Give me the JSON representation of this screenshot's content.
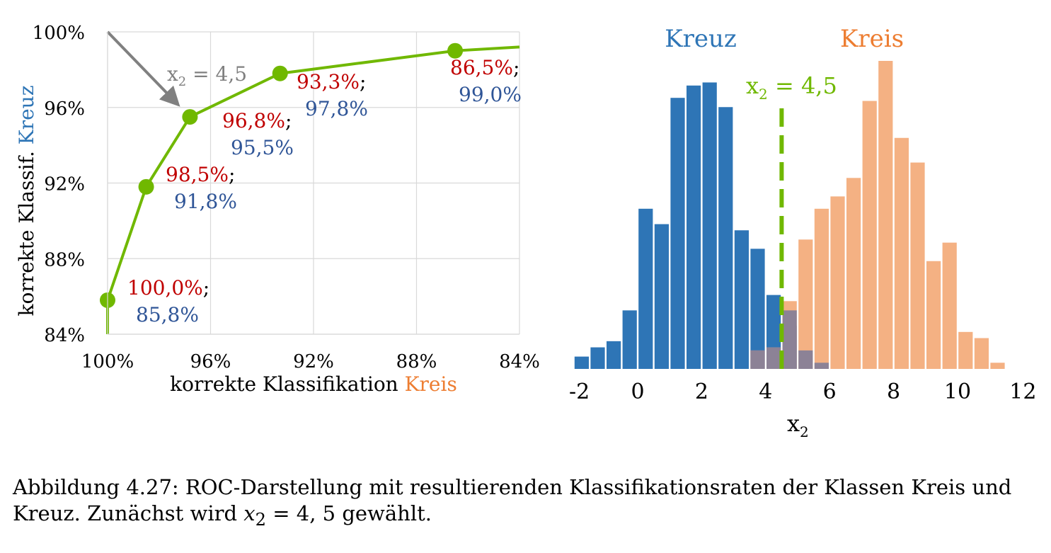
{
  "colors": {
    "kreuz": "#2e75b6",
    "kreis": "#f4b183",
    "kreis_text": "#ed7d31",
    "overlap": "#8c8296",
    "roc_line": "#70b800",
    "threshold": "#70b800",
    "arrow": "#808080",
    "label_kreis_rate": "#c00000",
    "label_kreuz_rate": "#2f5597",
    "grid": "#d9d9d9"
  },
  "chart_data": [
    {
      "type": "line",
      "xlabel_prefix": "korrekte Klassifikation ",
      "xlabel_class": "Kreis",
      "ylabel_prefix": "korrekte Klassif. ",
      "ylabel_class": "Kreuz",
      "xlim": [
        100,
        84
      ],
      "ylim": [
        84,
        100
      ],
      "x_reversed": true,
      "grid": true,
      "x_ticks": [
        100,
        96,
        92,
        88,
        84
      ],
      "x_tick_labels": [
        "100%",
        "96%",
        "92%",
        "88%",
        "84%"
      ],
      "y_ticks": [
        84,
        88,
        92,
        96,
        100
      ],
      "y_tick_labels": [
        "84%",
        "88%",
        "92%",
        "96%",
        "100%"
      ],
      "line": {
        "x": [
          100,
          100,
          98.5,
          96.8,
          93.3,
          86.5,
          84
        ],
        "y": [
          84,
          85.8,
          91.8,
          95.5,
          97.8,
          99.0,
          99.2
        ]
      },
      "points": [
        {
          "x": 100.0,
          "y": 85.8,
          "label_kreis": "100,0%",
          "label_kreuz": "85,8%",
          "sep": ";"
        },
        {
          "x": 98.5,
          "y": 91.8,
          "label_kreis": "98,5%",
          "label_kreuz": "91,8%",
          "sep": ";"
        },
        {
          "x": 96.8,
          "y": 95.5,
          "label_kreis": "96,8%",
          "label_kreuz": "95,5%",
          "sep": ";"
        },
        {
          "x": 93.3,
          "y": 97.8,
          "label_kreis": "93,3%",
          "label_kreuz": "97,8%",
          "sep": ";"
        },
        {
          "x": 86.5,
          "y": 99.0,
          "label_kreis": "86,5%",
          "label_kreuz": "99,0%",
          "sep": ";"
        }
      ],
      "annotation": {
        "text_var": "x",
        "text_sub": "2",
        "text_rest": " = 4,5",
        "arrow_from": [
          100,
          100
        ],
        "arrow_to": [
          96.8,
          95.5
        ]
      }
    },
    {
      "type": "bar",
      "title_kreuz": "Kreuz",
      "title_kreis": "Kreis",
      "xlabel_var": "x",
      "xlabel_sub": "2",
      "xlim": [
        -2.25,
        12
      ],
      "ylim": [
        0,
        100
      ],
      "bin_width": 0.5,
      "x_ticks": [
        -2,
        0,
        2,
        4,
        6,
        8,
        10,
        12
      ],
      "x_tick_labels": [
        "-2",
        "0",
        "2",
        "4",
        "6",
        "8",
        "10",
        "12"
      ],
      "threshold": {
        "x": 4.5,
        "label_var": "x",
        "label_sub": "2",
        "label_rest": " = 4,5"
      },
      "series": [
        {
          "name": "Kreuz",
          "bin_starts": [
            -2.0,
            -1.5,
            -1.0,
            -0.5,
            0.0,
            0.5,
            1.0,
            1.5,
            2.0,
            2.5,
            3.0,
            3.5,
            4.0,
            4.5
          ],
          "values": [
            4,
            7,
            9,
            19,
            52,
            47,
            88,
            92,
            93,
            85,
            45,
            39,
            24,
            14
          ]
        },
        {
          "name": "Kreis",
          "bin_starts": [
            3.5,
            4.0,
            4.5,
            5.0,
            5.5,
            6.0,
            6.5,
            7.0,
            7.5,
            8.0,
            8.5,
            9.0,
            9.5,
            10.0,
            10.5
          ],
          "values": [
            6,
            7,
            22,
            42,
            52,
            56,
            62,
            87,
            100,
            75,
            67,
            35,
            41,
            12,
            10
          ]
        },
        {
          "name": "Overlap",
          "bin_starts": [
            3.5,
            4.0,
            4.5,
            5.0,
            5.5
          ],
          "values": [
            6,
            7,
            19,
            6,
            2
          ]
        }
      ],
      "extra_kreis": [
        {
          "bin_start": 11.0,
          "value": 2
        }
      ]
    }
  ],
  "caption": {
    "text_before": "Abbildung 4.27: ROC-Darstellung mit resultierenden Klassifikationsraten der Klassen Kreis und Kreuz. Zunächst wird ",
    "math_var": "x",
    "math_sub": "2",
    "math_rest": " = 4, 5",
    "text_after": " gewählt."
  }
}
